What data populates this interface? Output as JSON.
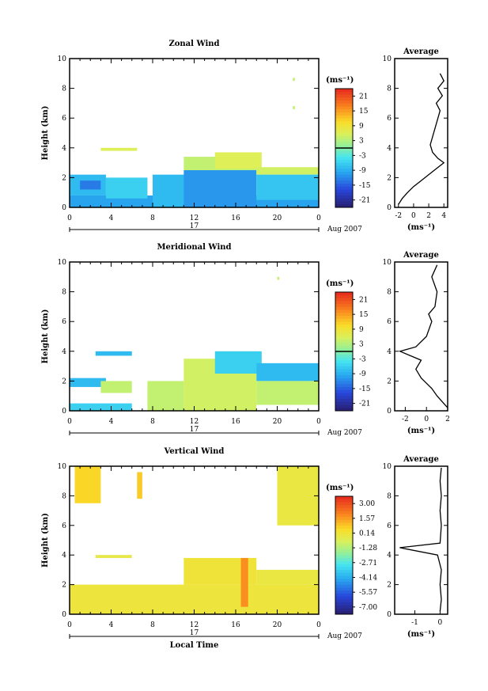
{
  "chart_data": [
    {
      "type": "heatmap",
      "title": "Zonal Wind",
      "ylabel": "Height (km)",
      "ylim": [
        0,
        10
      ],
      "xlim": [
        0,
        24
      ],
      "x_ticks": [
        "0",
        "4",
        "8",
        "12",
        "16",
        "20",
        "0"
      ],
      "y_ticks": [
        "0",
        "2",
        "4",
        "6",
        "8",
        "10"
      ],
      "date_label": "17",
      "date_right": "Aug 2007",
      "colorbar": {
        "unit": "(ms⁻¹)",
        "ticks": [
          "21",
          "15",
          "9",
          "3",
          "-3",
          "-9",
          "-15",
          "-21"
        ],
        "range": [
          -24,
          24
        ],
        "zero_line": 0
      },
      "field": {
        "patches": [
          {
            "t0": 0.0,
            "t1": 24.0,
            "z0": 0.0,
            "z1": 0.8,
            "v": -10
          },
          {
            "t0": 0.0,
            "t1": 3.5,
            "z0": 0.8,
            "z1": 2.2,
            "v": -8
          },
          {
            "t0": 1.0,
            "t1": 3.0,
            "z0": 1.2,
            "z1": 1.8,
            "v": -13
          },
          {
            "t0": 3.5,
            "t1": 7.5,
            "z0": 0.6,
            "z1": 2.0,
            "v": -6
          },
          {
            "t0": 3.0,
            "t1": 6.5,
            "z0": 3.8,
            "z1": 4.0,
            "v": 6
          },
          {
            "t0": 8.0,
            "t1": 11.5,
            "z0": 0.0,
            "z1": 2.2,
            "v": -8
          },
          {
            "t0": 11.0,
            "t1": 18.0,
            "z0": 0.0,
            "z1": 2.5,
            "v": -11
          },
          {
            "t0": 11.0,
            "t1": 18.0,
            "z0": 2.5,
            "z1": 3.4,
            "v": 4
          },
          {
            "t0": 14.0,
            "t1": 18.5,
            "z0": 2.6,
            "z1": 3.7,
            "v": 6
          },
          {
            "t0": 18.0,
            "t1": 24.0,
            "z0": 2.2,
            "z1": 2.7,
            "v": 5
          },
          {
            "t0": 18.0,
            "t1": 24.0,
            "z0": 0.5,
            "z1": 2.2,
            "v": -7
          },
          {
            "t0": 21.5,
            "t1": 21.7,
            "z0": 6.6,
            "z1": 6.8,
            "v": 4
          },
          {
            "t0": 21.5,
            "t1": 21.7,
            "z0": 8.5,
            "z1": 8.7,
            "v": 4
          }
        ]
      },
      "profile": {
        "title": "Average",
        "xlabel": "(ms⁻¹)",
        "xlim": [
          -2.5,
          4.5
        ],
        "x_ticks": [
          "-2",
          "0",
          "2",
          "4"
        ],
        "y_ticks": [
          "0",
          "2",
          "4",
          "6",
          "8",
          "10"
        ],
        "points": [
          [
            -2,
            0.2
          ],
          [
            -1.5,
            0.6
          ],
          [
            -0.8,
            1.0
          ],
          [
            0,
            1.4
          ],
          [
            1,
            1.8
          ],
          [
            2,
            2.2
          ],
          [
            3,
            2.6
          ],
          [
            4,
            3.0
          ],
          [
            3.2,
            3.3
          ],
          [
            2.5,
            3.7
          ],
          [
            2.2,
            4.2
          ],
          [
            3.5,
            6.5
          ],
          [
            3,
            7
          ],
          [
            3.8,
            7.5
          ],
          [
            3.2,
            8
          ],
          [
            4,
            8.5
          ],
          [
            3.5,
            9
          ]
        ]
      }
    },
    {
      "type": "heatmap",
      "title": "Meridional Wind",
      "ylabel": "Height (km)",
      "ylim": [
        0,
        10
      ],
      "xlim": [
        0,
        24
      ],
      "x_ticks": [
        "0",
        "4",
        "8",
        "12",
        "16",
        "20",
        "0"
      ],
      "y_ticks": [
        "0",
        "2",
        "4",
        "6",
        "8",
        "10"
      ],
      "date_label": "17",
      "date_right": "Aug 2007",
      "colorbar": {
        "unit": "(ms⁻¹)",
        "ticks": [
          "21",
          "15",
          "9",
          "3",
          "-3",
          "-9",
          "-15",
          "-21"
        ],
        "range": [
          -24,
          24
        ],
        "zero_line": 0
      },
      "field": {
        "patches": [
          {
            "t0": 0.0,
            "t1": 3.5,
            "z0": 1.6,
            "z1": 2.2,
            "v": -8
          },
          {
            "t0": 0.0,
            "t1": 6.0,
            "z0": 0.0,
            "z1": 0.5,
            "v": -6
          },
          {
            "t0": 3.0,
            "t1": 6.0,
            "z0": 1.2,
            "z1": 2.0,
            "v": 4
          },
          {
            "t0": 2.5,
            "t1": 6.0,
            "z0": 3.7,
            "z1": 4.0,
            "v": -8
          },
          {
            "t0": 7.5,
            "t1": 11.0,
            "z0": 0.0,
            "z1": 2.0,
            "v": 4
          },
          {
            "t0": 11.0,
            "t1": 18.0,
            "z0": 0.0,
            "z1": 3.5,
            "v": 5
          },
          {
            "t0": 14.0,
            "t1": 18.5,
            "z0": 2.5,
            "z1": 4.0,
            "v": -6
          },
          {
            "t0": 18.0,
            "t1": 24.0,
            "z0": 2.0,
            "z1": 3.2,
            "v": -8
          },
          {
            "t0": 18.0,
            "t1": 24.0,
            "z0": 0.4,
            "z1": 2.0,
            "v": 4
          },
          {
            "t0": 20.0,
            "t1": 20.2,
            "z0": 8.8,
            "z1": 9.0,
            "v": 4
          }
        ]
      },
      "profile": {
        "title": "Average",
        "xlabel": "(ms⁻¹)",
        "xlim": [
          -3,
          2
        ],
        "x_ticks": [
          "-2",
          "0",
          "2"
        ],
        "y_ticks": [
          "0",
          "2",
          "4",
          "6",
          "8",
          "10"
        ],
        "points": [
          [
            2,
            0.2
          ],
          [
            1,
            1.0
          ],
          [
            0.5,
            1.5
          ],
          [
            -0.5,
            2.2
          ],
          [
            -1,
            2.8
          ],
          [
            -0.5,
            3.4
          ],
          [
            -2.5,
            4.0
          ],
          [
            -1,
            4.3
          ],
          [
            0,
            5
          ],
          [
            0.5,
            6
          ],
          [
            0.2,
            6.5
          ],
          [
            0.8,
            7
          ],
          [
            1,
            8
          ],
          [
            0.5,
            9
          ],
          [
            1,
            9.8
          ]
        ]
      }
    },
    {
      "type": "heatmap",
      "title": "Vertical Wind",
      "ylabel": "Height (km)",
      "xlabel": "Local Time",
      "ylim": [
        0,
        10
      ],
      "xlim": [
        0,
        24
      ],
      "x_ticks": [
        "0",
        "4",
        "8",
        "12",
        "16",
        "20",
        "0"
      ],
      "y_ticks": [
        "0",
        "2",
        "4",
        "6",
        "8",
        "10"
      ],
      "date_label": "17",
      "date_right": "Aug 2007",
      "colorbar": {
        "unit": "(ms⁻¹)",
        "ticks": [
          "3.00",
          "1.57",
          "0.14",
          "-1.28",
          "-2.71",
          "-4.14",
          "-5.57",
          "-7.00"
        ],
        "range": [
          -7.7,
          3.7
        ]
      },
      "field": {
        "patches": [
          {
            "t0": 0.0,
            "t1": 24.0,
            "z0": 0.0,
            "z1": 2.0,
            "v": 0.0
          },
          {
            "t0": 11.0,
            "t1": 18.0,
            "z0": 2.0,
            "z1": 3.8,
            "v": 0.1
          },
          {
            "t0": 18.0,
            "t1": 24.0,
            "z0": 2.0,
            "z1": 3.0,
            "v": -0.1
          },
          {
            "t0": 2.5,
            "t1": 6.0,
            "z0": 3.8,
            "z1": 4.0,
            "v": -0.2
          },
          {
            "t0": 0.5,
            "t1": 3.0,
            "z0": 7.5,
            "z1": 10.0,
            "v": 0.6
          },
          {
            "t0": 6.5,
            "t1": 7.0,
            "z0": 7.8,
            "z1": 9.6,
            "v": 0.8
          },
          {
            "t0": 20.0,
            "t1": 24.0,
            "z0": 6.0,
            "z1": 10.0,
            "v": -0.1
          },
          {
            "t0": 16.5,
            "t1": 17.2,
            "z0": 0.5,
            "z1": 3.8,
            "v": 1.8
          }
        ]
      },
      "profile": {
        "title": "Average",
        "xlabel": "(ms⁻¹)",
        "xlim": [
          -1.8,
          0.3
        ],
        "x_ticks": [
          "-1",
          "0"
        ],
        "y_ticks": [
          "0",
          "2",
          "4",
          "6",
          "8",
          "10"
        ],
        "points": [
          [
            0,
            0.2
          ],
          [
            0.05,
            1
          ],
          [
            0,
            2
          ],
          [
            0.05,
            3
          ],
          [
            -0.1,
            4.0
          ],
          [
            -1.6,
            4.5
          ],
          [
            0,
            4.8
          ],
          [
            0.05,
            6
          ],
          [
            0,
            7
          ],
          [
            0.05,
            8
          ],
          [
            0,
            9
          ],
          [
            0.05,
            9.9
          ]
        ]
      }
    }
  ]
}
